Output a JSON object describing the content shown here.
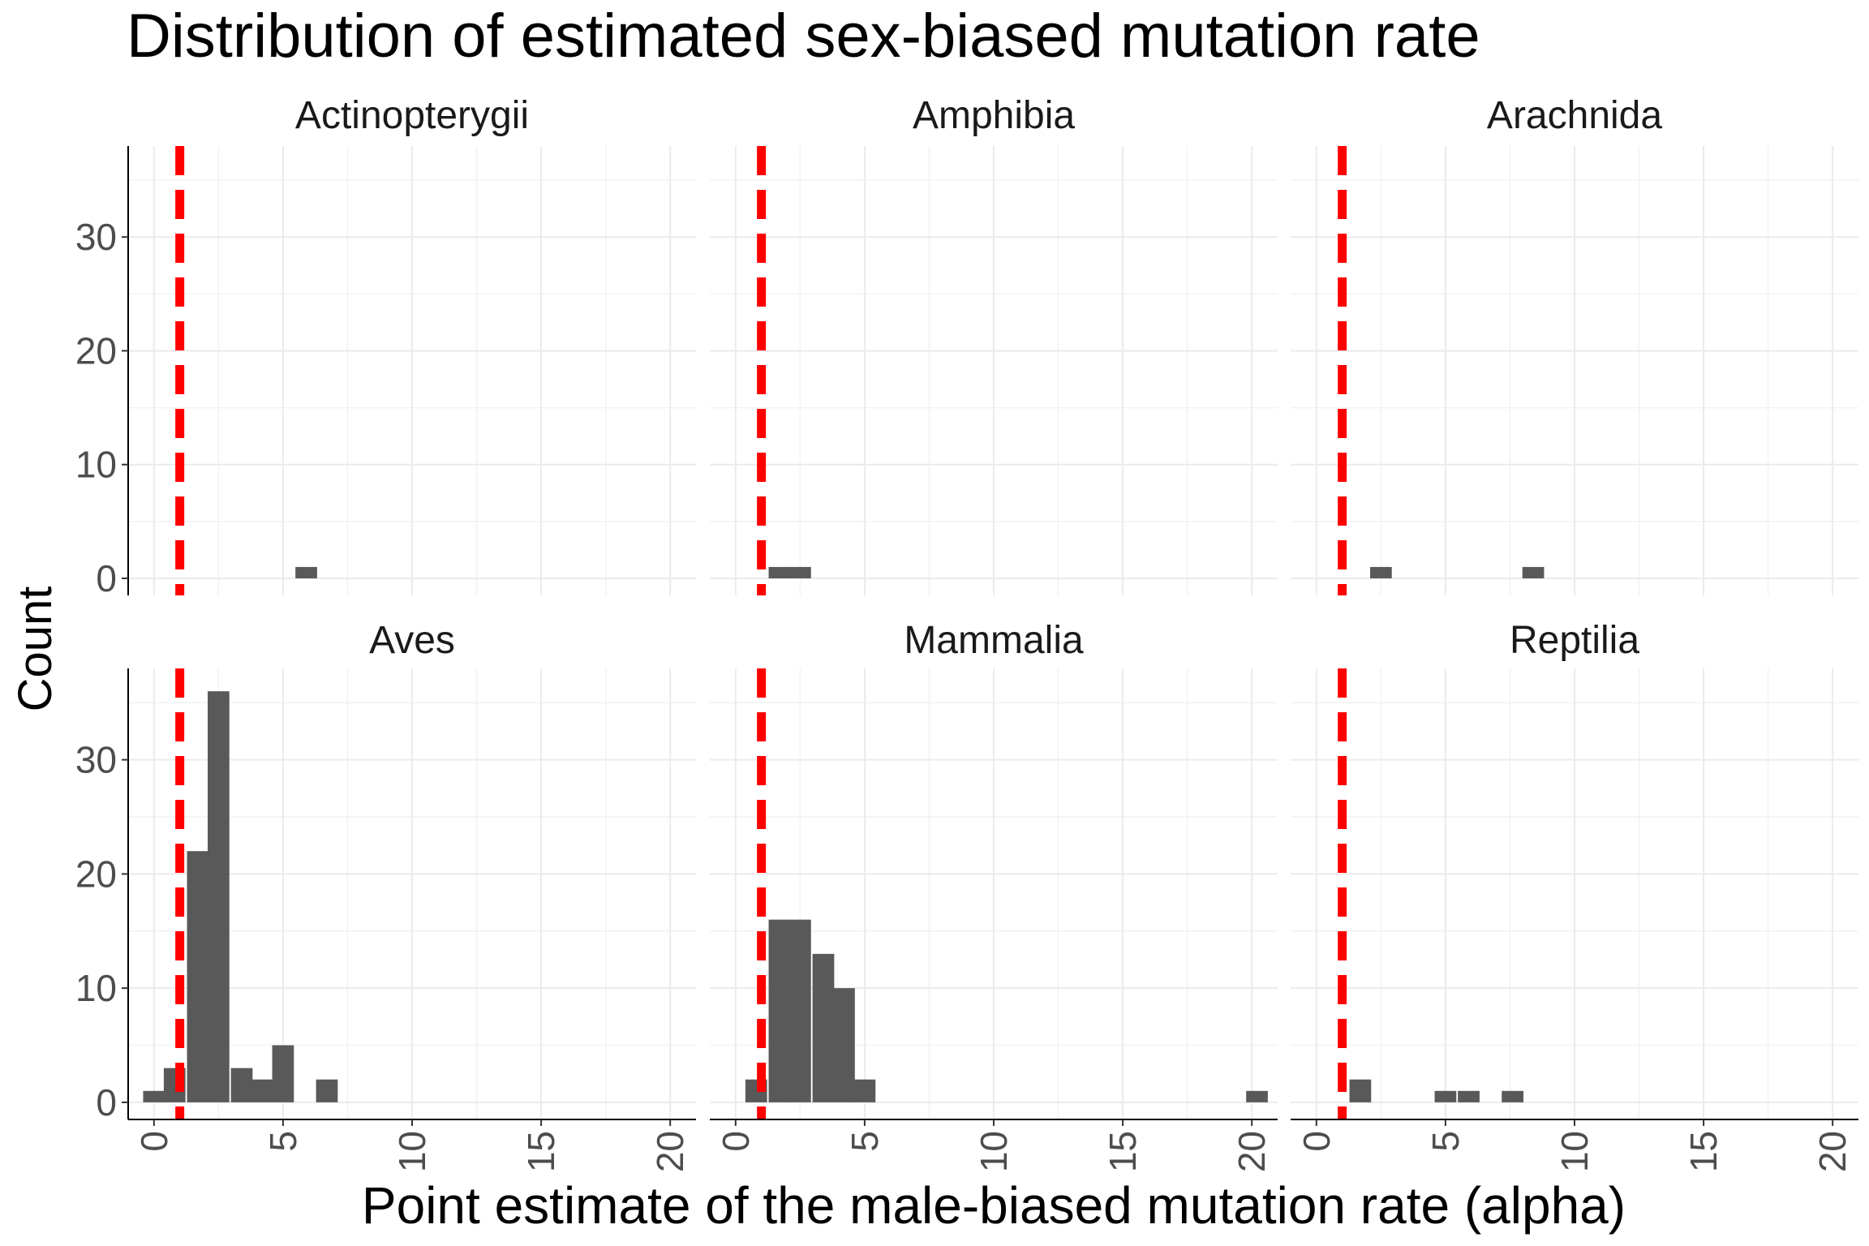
{
  "chart_data": {
    "type": "bar",
    "title": "Distribution of estimated sex-biased mutation rate",
    "xlabel": "Point estimate of the male-biased mutation rate (alpha)",
    "ylabel": "Count",
    "xlim": [
      -1,
      21
    ],
    "ylim": [
      -1.5,
      38
    ],
    "x_ticks": [
      0,
      5,
      10,
      15,
      20
    ],
    "y_ticks": [
      0,
      10,
      20,
      30
    ],
    "bin_width": 0.84,
    "reference_line": {
      "x": 1,
      "color": "#ff0000",
      "style": "dashed"
    },
    "bar_color": "#595959",
    "grid": true,
    "layout": "3 columns x 2 rows, shared axes",
    "facets": [
      {
        "name": "Actinopterygii",
        "bins": [
          {
            "x": 5.9,
            "count": 1
          }
        ]
      },
      {
        "name": "Amphibia",
        "bins": [
          {
            "x": 1.7,
            "count": 1
          },
          {
            "x": 2.5,
            "count": 1
          }
        ]
      },
      {
        "name": "Arachnida",
        "bins": [
          {
            "x": 2.5,
            "count": 1
          },
          {
            "x": 8.4,
            "count": 1
          }
        ]
      },
      {
        "name": "Aves",
        "bins": [
          {
            "x": 0.0,
            "count": 1
          },
          {
            "x": 0.8,
            "count": 3
          },
          {
            "x": 1.7,
            "count": 22
          },
          {
            "x": 2.5,
            "count": 36
          },
          {
            "x": 3.4,
            "count": 3
          },
          {
            "x": 4.2,
            "count": 2
          },
          {
            "x": 5.0,
            "count": 5
          },
          {
            "x": 6.7,
            "count": 2
          }
        ]
      },
      {
        "name": "Mammalia",
        "bins": [
          {
            "x": 0.8,
            "count": 2
          },
          {
            "x": 1.7,
            "count": 16
          },
          {
            "x": 2.5,
            "count": 16
          },
          {
            "x": 3.4,
            "count": 13
          },
          {
            "x": 4.2,
            "count": 10
          },
          {
            "x": 5.0,
            "count": 2
          },
          {
            "x": 20.2,
            "count": 1
          }
        ]
      },
      {
        "name": "Reptilia",
        "bins": [
          {
            "x": 1.7,
            "count": 2
          },
          {
            "x": 5.0,
            "count": 1
          },
          {
            "x": 5.9,
            "count": 1
          },
          {
            "x": 7.6,
            "count": 1
          }
        ]
      }
    ]
  }
}
